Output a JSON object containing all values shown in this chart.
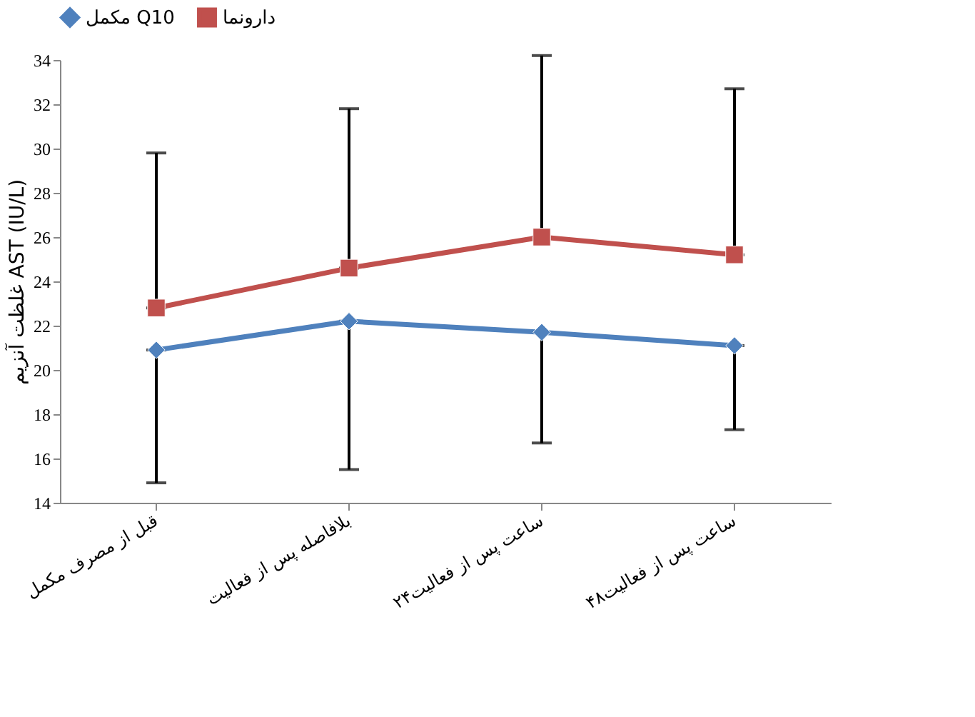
{
  "chart_data": {
    "type": "line",
    "ylabel": "غلظت آنزیم AST (IU/L)",
    "categories": [
      "قبل از مصرف مکمل",
      "بلافاصله پس از فعالیت",
      "۲۴ساعت پس از فعالیت",
      "۴۸ساعت پس از فعالیت"
    ],
    "series": [
      {
        "name": "مکمل Q10",
        "color": "#4f81bd",
        "marker": "diamond",
        "values": [
          20.9,
          22.2,
          21.7,
          21.1
        ],
        "errors": [
          [
            14.9,
            20.9
          ],
          [
            15.5,
            22.2
          ],
          [
            16.7,
            21.7
          ],
          [
            17.3,
            21.1
          ]
        ]
      },
      {
        "name": "دارونما",
        "color": "#c0504d",
        "marker": "square",
        "values": [
          22.8,
          24.6,
          26.0,
          25.2
        ],
        "errors": [
          [
            22.8,
            29.8
          ],
          [
            24.6,
            31.8
          ],
          [
            26.0,
            34.2
          ],
          [
            25.2,
            32.7
          ]
        ]
      }
    ],
    "ylim": [
      14,
      34
    ],
    "yticks": [
      14,
      16,
      18,
      20,
      22,
      24,
      26,
      28,
      30,
      32,
      34
    ],
    "grid": false,
    "legend": "top",
    "line_style": "solid"
  }
}
